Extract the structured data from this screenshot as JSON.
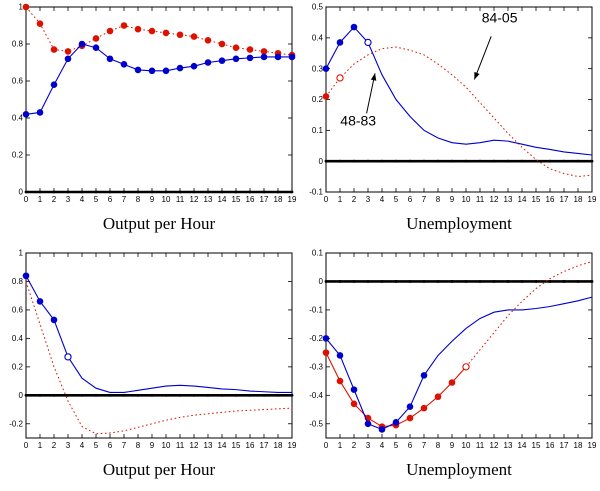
{
  "colors": {
    "blue": "#0000cc",
    "red": "#dd1100",
    "axis": "#000000",
    "zero_line": "#000000",
    "background": "#ffffff"
  },
  "xticks": [
    0,
    1,
    2,
    3,
    4,
    5,
    6,
    7,
    8,
    9,
    10,
    11,
    12,
    13,
    14,
    15,
    16,
    17,
    18,
    19
  ],
  "chart_data": [
    {
      "name": "output-per-hour-top",
      "type": "line",
      "xlabel": "Output per Hour",
      "xlim": [
        0,
        19
      ],
      "ylim": [
        0,
        1
      ],
      "yticks": [
        1,
        0.8,
        0.6,
        0.4,
        0.2,
        0
      ],
      "zero_line_y": 0,
      "series": [
        {
          "name": "84-05",
          "color": "red",
          "style": "dotted",
          "values": [
            1.0,
            0.91,
            0.77,
            0.76,
            0.79,
            0.83,
            0.87,
            0.9,
            0.88,
            0.87,
            0.86,
            0.85,
            0.84,
            0.82,
            0.8,
            0.78,
            0.77,
            0.76,
            0.75,
            0.74
          ],
          "marker_filled": [
            0,
            1,
            2,
            3,
            4,
            5,
            6,
            7,
            8,
            9,
            10,
            11,
            12,
            13,
            14,
            15,
            16,
            17,
            18,
            19
          ],
          "marker_open": []
        },
        {
          "name": "48-83",
          "color": "blue",
          "style": "solid",
          "values": [
            0.42,
            0.43,
            0.58,
            0.72,
            0.8,
            0.78,
            0.72,
            0.69,
            0.66,
            0.655,
            0.655,
            0.67,
            0.68,
            0.7,
            0.71,
            0.72,
            0.725,
            0.73,
            0.73,
            0.73
          ],
          "marker_filled": [
            0,
            1,
            2,
            3,
            4,
            5,
            6,
            7,
            8,
            9,
            10,
            11,
            12,
            13,
            14,
            15,
            16,
            17,
            18,
            19
          ],
          "marker_open": []
        }
      ],
      "annotations": []
    },
    {
      "name": "unemployment-top",
      "type": "line",
      "xlabel": "Unemployment",
      "xlim": [
        0,
        19
      ],
      "ylim": [
        -0.1,
        0.5
      ],
      "yticks": [
        0.5,
        0.4,
        0.3,
        0.2,
        0.1,
        0,
        -0.1
      ],
      "zero_line_y": 0,
      "series": [
        {
          "name": "84-05",
          "color": "red",
          "style": "dotted",
          "values": [
            0.21,
            0.27,
            0.315,
            0.345,
            0.365,
            0.37,
            0.36,
            0.345,
            0.315,
            0.28,
            0.24,
            0.19,
            0.14,
            0.09,
            0.045,
            0.005,
            -0.025,
            -0.04,
            -0.05,
            -0.045
          ],
          "marker_filled": [
            0
          ],
          "marker_open": [
            1
          ]
        },
        {
          "name": "48-83",
          "color": "blue",
          "style": "solid",
          "values": [
            0.3,
            0.385,
            0.435,
            0.385,
            0.28,
            0.2,
            0.145,
            0.1,
            0.075,
            0.06,
            0.055,
            0.06,
            0.068,
            0.065,
            0.055,
            0.045,
            0.038,
            0.03,
            0.025,
            0.02
          ],
          "marker_filled": [
            0,
            1,
            2
          ],
          "marker_open": [
            3
          ]
        }
      ],
      "annotations": [
        {
          "text": "84-05",
          "text_x": 12.4,
          "text_y": 0.45,
          "arrow_from_x": 11.8,
          "arrow_from_y": 0.405,
          "arrow_to_x": 10.6,
          "arrow_to_y": 0.265
        },
        {
          "text": "48-83",
          "text_x": 2.3,
          "text_y": 0.115,
          "arrow_from_x": 2.9,
          "arrow_from_y": 0.155,
          "arrow_to_x": 3.5,
          "arrow_to_y": 0.285
        }
      ]
    },
    {
      "name": "output-per-hour-bottom",
      "type": "line",
      "xlabel": "Output per Hour",
      "xlim": [
        0,
        19
      ],
      "ylim": [
        -0.3,
        1
      ],
      "yticks": [
        1,
        0.8,
        0.6,
        0.4,
        0.2,
        0,
        -0.2
      ],
      "zero_line_y": 0,
      "series": [
        {
          "name": "84-05",
          "color": "red",
          "style": "dotted",
          "values": [
            0.8,
            0.5,
            0.2,
            -0.04,
            -0.22,
            -0.27,
            -0.265,
            -0.25,
            -0.225,
            -0.2,
            -0.175,
            -0.155,
            -0.14,
            -0.13,
            -0.12,
            -0.11,
            -0.105,
            -0.1,
            -0.095,
            -0.09
          ],
          "marker_filled": [],
          "marker_open": []
        },
        {
          "name": "48-83",
          "color": "blue",
          "style": "solid",
          "values": [
            0.84,
            0.66,
            0.53,
            0.27,
            0.12,
            0.05,
            0.02,
            0.02,
            0.035,
            0.05,
            0.065,
            0.07,
            0.065,
            0.055,
            0.045,
            0.04,
            0.03,
            0.025,
            0.02,
            0.02
          ],
          "marker_filled": [
            0,
            1,
            2
          ],
          "marker_open": [
            3
          ]
        }
      ],
      "annotations": []
    },
    {
      "name": "unemployment-bottom",
      "type": "line",
      "xlabel": "Unemployment",
      "xlim": [
        0,
        19
      ],
      "ylim": [
        -0.55,
        0.1
      ],
      "yticks": [
        0.1,
        0,
        -0.1,
        -0.2,
        -0.3,
        -0.4,
        -0.5
      ],
      "zero_line_y": 0,
      "series": [
        {
          "name": "84-05",
          "color": "red",
          "style": "solid",
          "style2": "dotted",
          "split": 10,
          "values": [
            -0.25,
            -0.35,
            -0.43,
            -0.48,
            -0.51,
            -0.505,
            -0.48,
            -0.445,
            -0.405,
            -0.355,
            -0.3,
            -0.24,
            -0.18,
            -0.12,
            -0.07,
            -0.025,
            0.01,
            0.035,
            0.055,
            0.07
          ],
          "marker_filled": [
            0,
            1,
            2,
            3,
            4,
            5,
            6,
            7,
            8,
            9
          ],
          "marker_open": [
            10
          ]
        },
        {
          "name": "48-83",
          "color": "blue",
          "style": "solid",
          "values": [
            -0.2,
            -0.26,
            -0.38,
            -0.5,
            -0.52,
            -0.495,
            -0.44,
            -0.33,
            -0.26,
            -0.21,
            -0.165,
            -0.13,
            -0.108,
            -0.1,
            -0.1,
            -0.095,
            -0.088,
            -0.078,
            -0.068,
            -0.055
          ],
          "marker_filled": [
            0,
            1,
            2,
            3,
            4,
            5,
            6,
            7
          ],
          "marker_open": []
        }
      ],
      "annotations": []
    }
  ]
}
